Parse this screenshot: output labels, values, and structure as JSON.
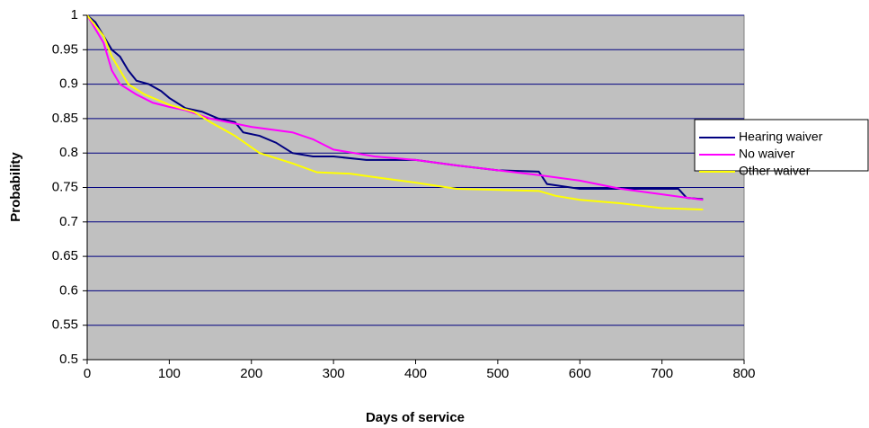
{
  "chart_data": {
    "type": "line",
    "xlabel": "Days of service",
    "ylabel": "Probability",
    "xlim": [
      0,
      800
    ],
    "xticks": [
      0,
      100,
      200,
      300,
      400,
      500,
      600,
      700,
      800
    ],
    "ylim": [
      0.5,
      1
    ],
    "yticks": [
      0.5,
      0.55,
      0.6,
      0.65,
      0.7,
      0.75,
      0.8,
      0.85,
      0.9,
      0.95,
      1
    ],
    "grid": true,
    "legend": "right",
    "series": [
      {
        "name": "Hearing waiver",
        "color": "#000080",
        "x": [
          0,
          10,
          20,
          30,
          40,
          50,
          60,
          75,
          90,
          100,
          120,
          140,
          160,
          180,
          190,
          210,
          230,
          250,
          275,
          300,
          340,
          400,
          450,
          500,
          550,
          560,
          600,
          650,
          720,
          730,
          750
        ],
        "values": [
          1,
          0.99,
          0.97,
          0.95,
          0.94,
          0.92,
          0.905,
          0.9,
          0.89,
          0.88,
          0.865,
          0.86,
          0.85,
          0.845,
          0.83,
          0.825,
          0.815,
          0.8,
          0.795,
          0.795,
          0.79,
          0.79,
          0.782,
          0.775,
          0.773,
          0.755,
          0.748,
          0.748,
          0.748,
          0.735,
          0.733
        ]
      },
      {
        "name": "No waiver",
        "color": "#ff00ff",
        "x": [
          0,
          10,
          20,
          30,
          40,
          60,
          80,
          100,
          120,
          150,
          200,
          250,
          275,
          300,
          350,
          400,
          450,
          500,
          550,
          600,
          650,
          700,
          750
        ],
        "values": [
          1,
          0.98,
          0.96,
          0.92,
          0.9,
          0.885,
          0.873,
          0.867,
          0.862,
          0.85,
          0.838,
          0.83,
          0.82,
          0.805,
          0.795,
          0.79,
          0.782,
          0.775,
          0.768,
          0.76,
          0.748,
          0.74,
          0.732
        ]
      },
      {
        "name": "Other waiver",
        "color": "#ffff00",
        "x": [
          0,
          20,
          30,
          40,
          50,
          70,
          100,
          130,
          150,
          180,
          210,
          250,
          280,
          320,
          350,
          400,
          450,
          550,
          570,
          600,
          650,
          700,
          750
        ],
        "values": [
          1,
          0.97,
          0.94,
          0.92,
          0.9,
          0.885,
          0.87,
          0.86,
          0.845,
          0.825,
          0.8,
          0.785,
          0.772,
          0.77,
          0.765,
          0.757,
          0.748,
          0.745,
          0.738,
          0.732,
          0.727,
          0.72,
          0.718
        ]
      }
    ]
  }
}
